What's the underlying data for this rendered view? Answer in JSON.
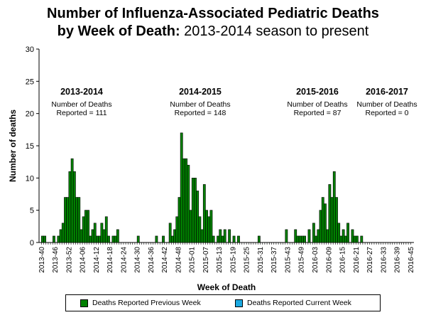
{
  "title_line1": "Number of Influenza-Associated Pediatric Deaths",
  "title_line2_bold": "by Week of Death:",
  "title_line2_rest": " 2013-2014 season to present",
  "chart_data": {
    "type": "bar",
    "xlabel": "Week of Death",
    "ylabel": "Number of deaths",
    "ylim": [
      0,
      30
    ],
    "yticks": [
      0,
      5,
      10,
      15,
      20,
      25,
      30
    ],
    "x_range": [
      "2013-40",
      "2016-45"
    ],
    "xtick_labels": [
      "2013-40",
      "2013-46",
      "2013-52",
      "2014-06",
      "2014-12",
      "2014-18",
      "2014-24",
      "2014-30",
      "2014-36",
      "2014-42",
      "2014-48",
      "2015-01",
      "2015-07",
      "2015-13",
      "2015-19",
      "2015-25",
      "2015-31",
      "2015-37",
      "2015-43",
      "2015-49",
      "2016-03",
      "2016-09",
      "2016-15",
      "2016-21",
      "2016-27",
      "2016-33",
      "2016-39",
      "2016-45"
    ],
    "grid": false,
    "legend_placement": "bottom",
    "series": [
      {
        "name": "Deaths Reported Previous Week",
        "color": "#008000",
        "values": [
          1,
          1,
          0,
          0,
          0,
          1,
          0,
          1,
          2,
          3,
          7,
          7,
          11,
          13,
          11,
          7,
          7,
          2,
          4,
          5,
          5,
          1,
          2,
          3,
          1,
          1,
          3,
          2,
          4,
          1,
          0,
          1,
          1,
          2,
          0,
          0,
          0,
          0,
          0,
          0,
          0,
          0,
          1,
          0,
          0,
          0,
          0,
          0,
          0,
          0,
          1,
          0,
          0,
          1,
          0,
          0,
          3,
          1,
          2,
          4,
          7,
          17,
          13,
          13,
          12,
          5,
          10,
          10,
          8,
          4,
          2,
          9,
          5,
          4,
          5,
          1,
          0,
          1,
          2,
          1,
          2,
          0,
          2,
          0,
          1,
          0,
          1,
          0,
          0,
          0,
          0,
          0,
          0,
          0,
          0,
          1,
          0,
          0,
          0,
          0,
          0,
          0,
          0,
          0,
          0,
          0,
          0,
          2,
          0,
          0,
          0,
          2,
          1,
          1,
          1,
          1,
          0,
          2,
          0,
          3,
          1,
          2,
          5,
          7,
          6,
          2,
          9,
          7,
          11,
          7,
          3,
          1,
          2,
          1,
          3,
          0,
          2,
          1,
          1,
          0,
          1,
          0,
          0,
          0,
          0,
          0,
          0,
          0,
          0,
          0,
          0,
          0,
          0,
          0,
          0,
          0,
          0,
          0,
          0,
          0,
          0,
          0,
          0
        ]
      },
      {
        "name": "Deaths Reported Current Week",
        "color": "#1ba9e1",
        "values": []
      }
    ],
    "annotations": [
      {
        "season": "2013-2014",
        "line1": "Number of Deaths",
        "line2": "Reported = 111"
      },
      {
        "season": "2014-2015",
        "line1": "Number of Deaths",
        "line2": "Reported = 148"
      },
      {
        "season": "2015-2016",
        "line1": "Number of Deaths",
        "line2": "Reported = 87"
      },
      {
        "season": "2016-2017",
        "line1": "Number of Deaths",
        "line2": "Reported = 0"
      }
    ]
  }
}
